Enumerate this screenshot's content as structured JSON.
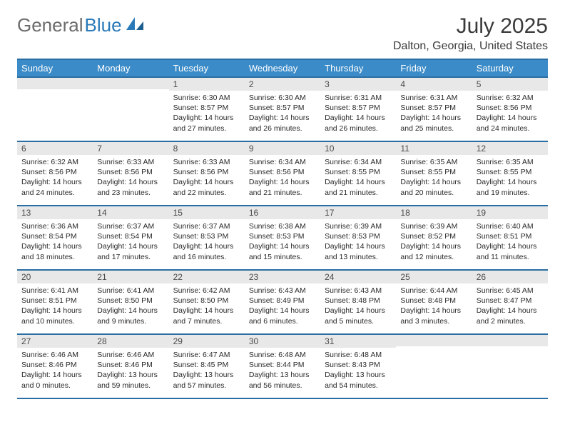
{
  "logo": {
    "text1": "General",
    "text2": "Blue"
  },
  "title": "July 2025",
  "location": "Dalton, Georgia, United States",
  "colors": {
    "header_bg": "#3b8bc8",
    "header_border": "#2a6ea3",
    "daynum_bg": "#e8e8e8",
    "text": "#2a2a2a",
    "title_color": "#3a3a3a",
    "logo_gray": "#6b6b6b",
    "logo_blue": "#2a7ab9"
  },
  "day_headers": [
    "Sunday",
    "Monday",
    "Tuesday",
    "Wednesday",
    "Thursday",
    "Friday",
    "Saturday"
  ],
  "weeks": [
    [
      {
        "num": "",
        "sunrise": "",
        "sunset": "",
        "daylight": ""
      },
      {
        "num": "",
        "sunrise": "",
        "sunset": "",
        "daylight": ""
      },
      {
        "num": "1",
        "sunrise": "Sunrise: 6:30 AM",
        "sunset": "Sunset: 8:57 PM",
        "daylight": "Daylight: 14 hours and 27 minutes."
      },
      {
        "num": "2",
        "sunrise": "Sunrise: 6:30 AM",
        "sunset": "Sunset: 8:57 PM",
        "daylight": "Daylight: 14 hours and 26 minutes."
      },
      {
        "num": "3",
        "sunrise": "Sunrise: 6:31 AM",
        "sunset": "Sunset: 8:57 PM",
        "daylight": "Daylight: 14 hours and 26 minutes."
      },
      {
        "num": "4",
        "sunrise": "Sunrise: 6:31 AM",
        "sunset": "Sunset: 8:57 PM",
        "daylight": "Daylight: 14 hours and 25 minutes."
      },
      {
        "num": "5",
        "sunrise": "Sunrise: 6:32 AM",
        "sunset": "Sunset: 8:56 PM",
        "daylight": "Daylight: 14 hours and 24 minutes."
      }
    ],
    [
      {
        "num": "6",
        "sunrise": "Sunrise: 6:32 AM",
        "sunset": "Sunset: 8:56 PM",
        "daylight": "Daylight: 14 hours and 24 minutes."
      },
      {
        "num": "7",
        "sunrise": "Sunrise: 6:33 AM",
        "sunset": "Sunset: 8:56 PM",
        "daylight": "Daylight: 14 hours and 23 minutes."
      },
      {
        "num": "8",
        "sunrise": "Sunrise: 6:33 AM",
        "sunset": "Sunset: 8:56 PM",
        "daylight": "Daylight: 14 hours and 22 minutes."
      },
      {
        "num": "9",
        "sunrise": "Sunrise: 6:34 AM",
        "sunset": "Sunset: 8:56 PM",
        "daylight": "Daylight: 14 hours and 21 minutes."
      },
      {
        "num": "10",
        "sunrise": "Sunrise: 6:34 AM",
        "sunset": "Sunset: 8:55 PM",
        "daylight": "Daylight: 14 hours and 21 minutes."
      },
      {
        "num": "11",
        "sunrise": "Sunrise: 6:35 AM",
        "sunset": "Sunset: 8:55 PM",
        "daylight": "Daylight: 14 hours and 20 minutes."
      },
      {
        "num": "12",
        "sunrise": "Sunrise: 6:35 AM",
        "sunset": "Sunset: 8:55 PM",
        "daylight": "Daylight: 14 hours and 19 minutes."
      }
    ],
    [
      {
        "num": "13",
        "sunrise": "Sunrise: 6:36 AM",
        "sunset": "Sunset: 8:54 PM",
        "daylight": "Daylight: 14 hours and 18 minutes."
      },
      {
        "num": "14",
        "sunrise": "Sunrise: 6:37 AM",
        "sunset": "Sunset: 8:54 PM",
        "daylight": "Daylight: 14 hours and 17 minutes."
      },
      {
        "num": "15",
        "sunrise": "Sunrise: 6:37 AM",
        "sunset": "Sunset: 8:53 PM",
        "daylight": "Daylight: 14 hours and 16 minutes."
      },
      {
        "num": "16",
        "sunrise": "Sunrise: 6:38 AM",
        "sunset": "Sunset: 8:53 PM",
        "daylight": "Daylight: 14 hours and 15 minutes."
      },
      {
        "num": "17",
        "sunrise": "Sunrise: 6:39 AM",
        "sunset": "Sunset: 8:53 PM",
        "daylight": "Daylight: 14 hours and 13 minutes."
      },
      {
        "num": "18",
        "sunrise": "Sunrise: 6:39 AM",
        "sunset": "Sunset: 8:52 PM",
        "daylight": "Daylight: 14 hours and 12 minutes."
      },
      {
        "num": "19",
        "sunrise": "Sunrise: 6:40 AM",
        "sunset": "Sunset: 8:51 PM",
        "daylight": "Daylight: 14 hours and 11 minutes."
      }
    ],
    [
      {
        "num": "20",
        "sunrise": "Sunrise: 6:41 AM",
        "sunset": "Sunset: 8:51 PM",
        "daylight": "Daylight: 14 hours and 10 minutes."
      },
      {
        "num": "21",
        "sunrise": "Sunrise: 6:41 AM",
        "sunset": "Sunset: 8:50 PM",
        "daylight": "Daylight: 14 hours and 9 minutes."
      },
      {
        "num": "22",
        "sunrise": "Sunrise: 6:42 AM",
        "sunset": "Sunset: 8:50 PM",
        "daylight": "Daylight: 14 hours and 7 minutes."
      },
      {
        "num": "23",
        "sunrise": "Sunrise: 6:43 AM",
        "sunset": "Sunset: 8:49 PM",
        "daylight": "Daylight: 14 hours and 6 minutes."
      },
      {
        "num": "24",
        "sunrise": "Sunrise: 6:43 AM",
        "sunset": "Sunset: 8:48 PM",
        "daylight": "Daylight: 14 hours and 5 minutes."
      },
      {
        "num": "25",
        "sunrise": "Sunrise: 6:44 AM",
        "sunset": "Sunset: 8:48 PM",
        "daylight": "Daylight: 14 hours and 3 minutes."
      },
      {
        "num": "26",
        "sunrise": "Sunrise: 6:45 AM",
        "sunset": "Sunset: 8:47 PM",
        "daylight": "Daylight: 14 hours and 2 minutes."
      }
    ],
    [
      {
        "num": "27",
        "sunrise": "Sunrise: 6:46 AM",
        "sunset": "Sunset: 8:46 PM",
        "daylight": "Daylight: 14 hours and 0 minutes."
      },
      {
        "num": "28",
        "sunrise": "Sunrise: 6:46 AM",
        "sunset": "Sunset: 8:46 PM",
        "daylight": "Daylight: 13 hours and 59 minutes."
      },
      {
        "num": "29",
        "sunrise": "Sunrise: 6:47 AM",
        "sunset": "Sunset: 8:45 PM",
        "daylight": "Daylight: 13 hours and 57 minutes."
      },
      {
        "num": "30",
        "sunrise": "Sunrise: 6:48 AM",
        "sunset": "Sunset: 8:44 PM",
        "daylight": "Daylight: 13 hours and 56 minutes."
      },
      {
        "num": "31",
        "sunrise": "Sunrise: 6:48 AM",
        "sunset": "Sunset: 8:43 PM",
        "daylight": "Daylight: 13 hours and 54 minutes."
      },
      {
        "num": "",
        "sunrise": "",
        "sunset": "",
        "daylight": ""
      },
      {
        "num": "",
        "sunrise": "",
        "sunset": "",
        "daylight": ""
      }
    ]
  ]
}
